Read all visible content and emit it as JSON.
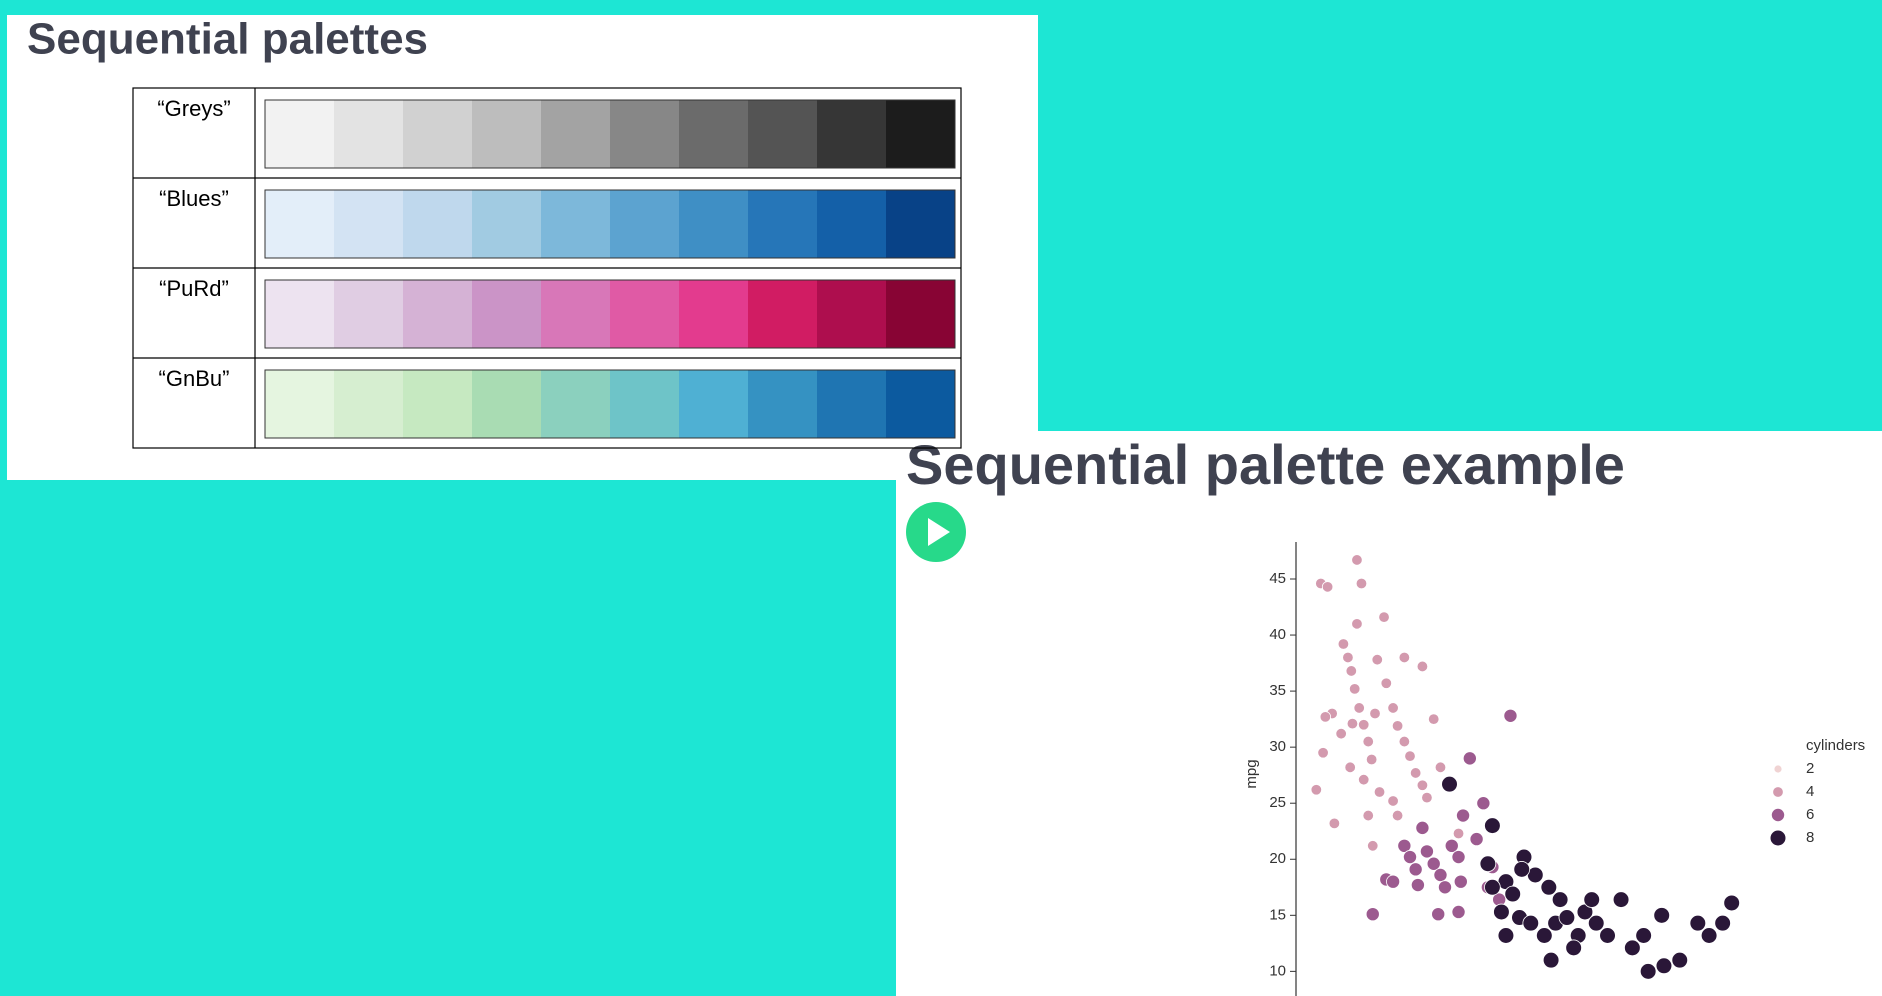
{
  "slides": [
    {
      "title": "Sequential palettes",
      "palettes": [
        {
          "name": "“Greys”",
          "colors": [
            "#f2f2f2",
            "#e3e3e3",
            "#d1d1d1",
            "#bdbdbd",
            "#a3a3a3",
            "#878787",
            "#6b6b6b",
            "#545454",
            "#363636",
            "#1c1c1c"
          ]
        },
        {
          "name": "“Blues”",
          "colors": [
            "#e3eef9",
            "#d3e3f3",
            "#bfd8ed",
            "#a1cbe2",
            "#7db8da",
            "#5ca3d0",
            "#3f8fc5",
            "#2676b8",
            "#1460a8",
            "#084287"
          ]
        },
        {
          "name": "“PuRd”",
          "colors": [
            "#ede3f0",
            "#e0cde3",
            "#d5b2d5",
            "#cb94c7",
            "#d877b8",
            "#e05aa5",
            "#e33b8e",
            "#d11c63",
            "#ae0e4e",
            "#880434"
          ]
        },
        {
          "name": "“GnBu”",
          "colors": [
            "#e5f5e0",
            "#d6eed0",
            "#c6e9c1",
            "#a9dcb3",
            "#8bd0be",
            "#6ec4c8",
            "#4fb0d3",
            "#3592c2",
            "#1f75b2",
            "#0c5a9f"
          ]
        }
      ]
    },
    {
      "title": "Sequential palette example",
      "chart_data": {
        "type": "scatter",
        "y_label": "mpg",
        "legend_title": "cylinders",
        "legend": "right",
        "xlim": [
          37,
          239
        ],
        "ylim": [
          7,
          48.3
        ],
        "yticks": [
          10,
          15,
          20,
          25,
          30,
          35,
          40,
          45
        ],
        "series": [
          {
            "name": "2",
            "color": "#f0d3d3",
            "x": [],
            "values": []
          },
          {
            "name": "4",
            "color": "#d39aae",
            "x": [
              48,
              51,
              64,
              66,
              46,
              49,
              53,
              54,
              58,
              60,
              61.5,
              63,
              65,
              67,
              69,
              70.5,
              64,
              76,
              73,
              77,
              80,
              82,
              85,
              87.5,
              90,
              93,
              95,
              85,
              93,
              98,
              74,
              80,
              69,
              71,
              61,
              57,
              62,
              101,
              106,
              109,
              50,
              72,
              67,
              82
            ],
            "values": [
              44.6,
              44.3,
              46.7,
              44.6,
              26.2,
              29.5,
              33,
              23.2,
              39.2,
              38,
              36.8,
              35.2,
              33.5,
              32,
              30.5,
              28.9,
              41,
              41.6,
              37.8,
              35.7,
              33.5,
              31.9,
              30.5,
              29.2,
              27.7,
              26.6,
              25.5,
              38,
              37.2,
              32.5,
              26,
              25.2,
              23.9,
              21.2,
              28.2,
              31.2,
              32.1,
              28.2,
              26.6,
              22.3,
              32.7,
              33,
              27.1,
              23.9
            ]
          },
          {
            "name": "6",
            "color": "#9c5a8f",
            "x": [
              85,
              87.5,
              90,
              95,
              98,
              101,
              103,
              106,
              109,
              110,
              100,
              71,
              77,
              93,
              111,
              114,
              132,
              109,
              122,
              127,
              117,
              124,
              91,
              120,
              80
            ],
            "values": [
              21.2,
              20.2,
              19.1,
              20.7,
              19.6,
              18.6,
              17.5,
              21.2,
              20.2,
              18,
              15.1,
              15.1,
              18.2,
              22.8,
              23.9,
              29,
              32.8,
              15.3,
              17.5,
              16.4,
              21.8,
              19.3,
              17.7,
              25,
              18
            ]
          },
          {
            "name": "8",
            "color": "#2a1738",
            "x": [
              105,
              124,
              122,
              130,
              133,
              138,
              143,
              149,
              154,
              136,
              141,
              147,
              152,
              157,
              162,
              165,
              170,
              175,
              181,
              186,
              191,
              199,
              200,
              207,
              215,
              220,
              226,
              230,
              193,
              160,
              150,
              130,
              128,
              124,
              168,
              137
            ],
            "values": [
              26.7,
              23,
              19.6,
              18,
              16.9,
              20.2,
              18.6,
              17.5,
              16.4,
              14.8,
              14.3,
              13.2,
              14.3,
              14.8,
              13.2,
              15.3,
              14.3,
              13.2,
              16.4,
              12.1,
              13.2,
              15,
              10.5,
              11,
              14.3,
              13.2,
              14.3,
              16.1,
              10,
              12.1,
              11,
              13.2,
              15.3,
              17.5,
              16.4,
              19.1
            ]
          }
        ]
      }
    }
  ]
}
